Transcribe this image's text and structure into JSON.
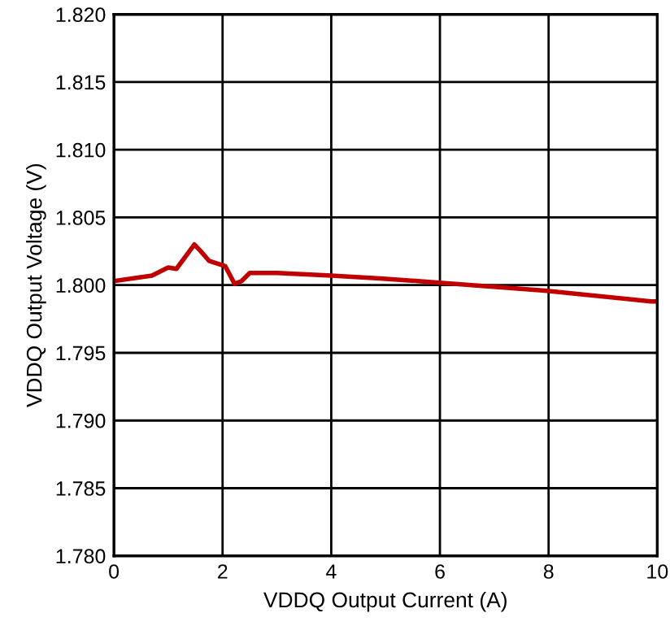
{
  "chart_data": {
    "type": "line",
    "xlabel": "VDDQ Output Current (A)",
    "ylabel": "VDDQ Output Voltage (V)",
    "xlim": [
      0,
      10
    ],
    "xticks": [
      0,
      2,
      4,
      6,
      8,
      10
    ],
    "ylim": [
      1.78,
      1.82
    ],
    "yticks": [
      {
        "value": 1.78,
        "label": "1.780"
      },
      {
        "value": 1.785,
        "label": "1.785"
      },
      {
        "value": 1.79,
        "label": "1.790"
      },
      {
        "value": 1.795,
        "label": "1.795"
      },
      {
        "value": 1.8,
        "label": "1.800"
      },
      {
        "value": 1.805,
        "label": "1.805"
      },
      {
        "value": 1.81,
        "label": "1.810"
      },
      {
        "value": 1.815,
        "label": "1.815"
      },
      {
        "value": 1.82,
        "label": "1.820"
      }
    ],
    "grid": true,
    "series": [
      {
        "color": "#c00000",
        "x": [
          0,
          0.7,
          1.0,
          1.15,
          1.48,
          1.6,
          1.75,
          2.05,
          2.22,
          2.35,
          2.5,
          3.0,
          4.0,
          4.9,
          5.94,
          7.93,
          9.88,
          10
        ],
        "values": [
          1.8003,
          1.8007,
          1.8013,
          1.8012,
          1.803,
          1.8025,
          1.8018,
          1.8014,
          1.8001,
          1.8003,
          1.8009,
          1.8009,
          1.8007,
          1.8005,
          1.8002,
          1.7996,
          1.7988,
          1.7988
        ]
      }
    ]
  }
}
